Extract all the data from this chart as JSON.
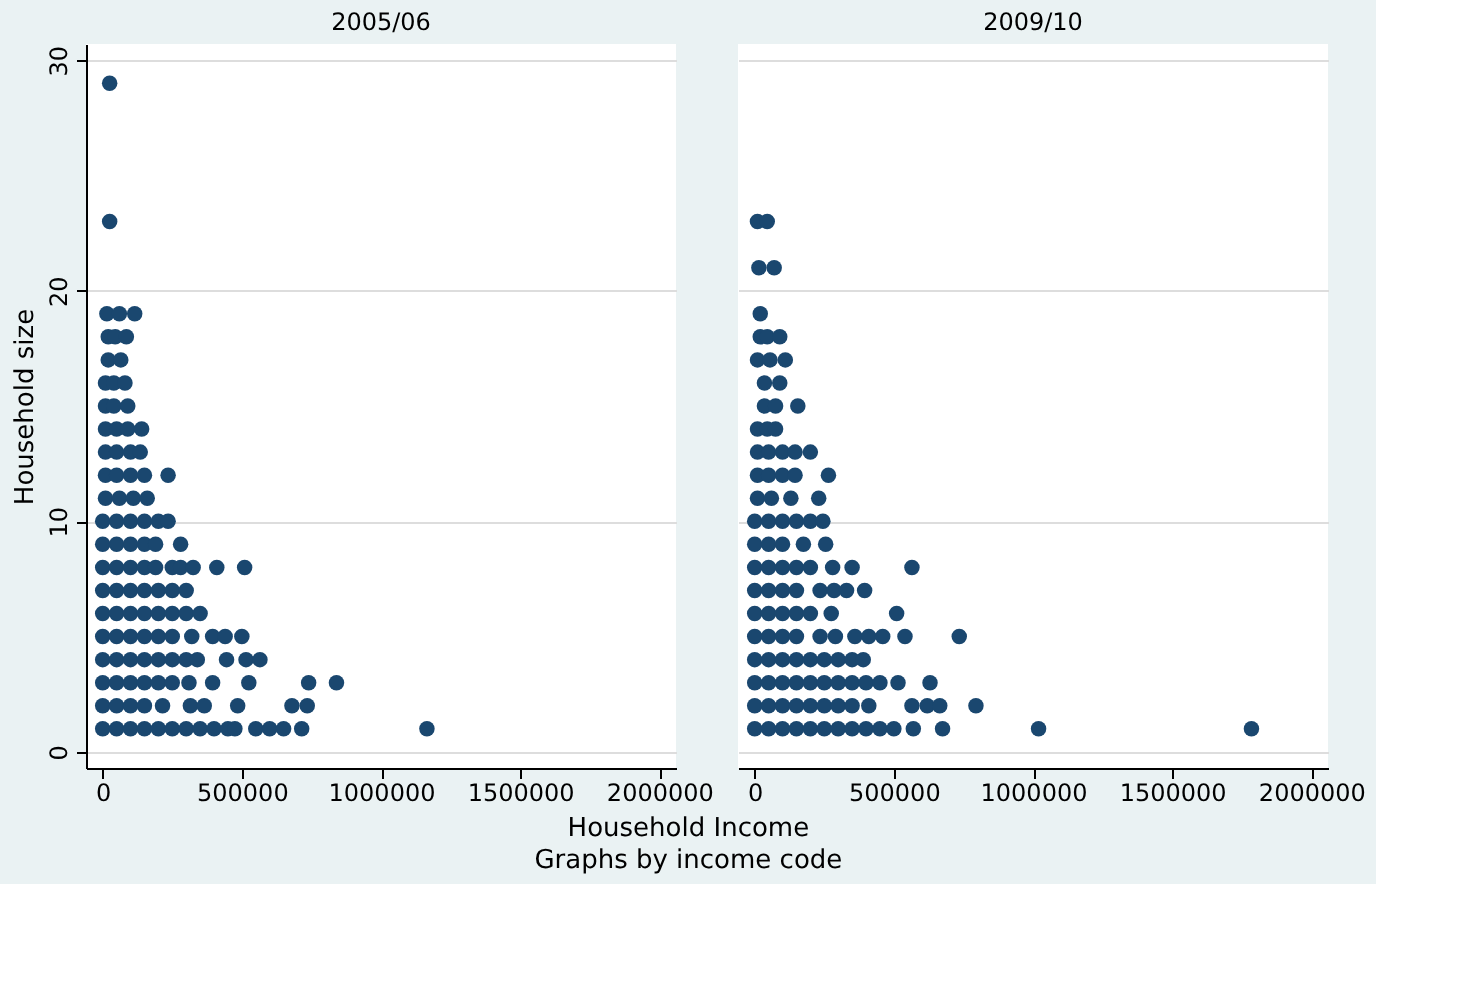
{
  "chart_data": [
    {
      "type": "scatter",
      "title": "2005/06",
      "ylabel": "Household size",
      "xlabel": "Household Income",
      "annotations": [
        "Graphs by income code"
      ],
      "xlim": [
        -60000,
        2060000
      ],
      "ylim": [
        -0.7,
        30.7
      ],
      "xticks": [
        0,
        500000,
        1000000,
        1500000,
        2000000
      ],
      "yticks": [
        0,
        10,
        20,
        30
      ],
      "grid": "y",
      "marker": "circle",
      "series": [
        {
          "color": "#1a476f",
          "x": [
            25000
          ],
          "values": [
            29
          ]
        },
        {
          "color": "#1a476f",
          "x": [
            25000
          ],
          "values": [
            23
          ]
        },
        {
          "color": "#1a476f",
          "x": [
            15000,
            60000,
            115000
          ],
          "values": [
            19,
            19,
            19
          ]
        },
        {
          "color": "#1a476f",
          "x": [
            20000,
            45000,
            85000
          ],
          "values": [
            18,
            18,
            18
          ]
        },
        {
          "color": "#1a476f",
          "x": [
            20000,
            65000
          ],
          "values": [
            17,
            17
          ]
        },
        {
          "color": "#1a476f",
          "x": [
            10000,
            40000,
            80000
          ],
          "values": [
            16,
            16,
            16
          ]
        },
        {
          "color": "#1a476f",
          "x": [
            10000,
            40000,
            90000
          ],
          "values": [
            15,
            15,
            15
          ]
        },
        {
          "color": "#1a476f",
          "x": [
            10000,
            50000,
            90000,
            140000
          ],
          "values": [
            14,
            14,
            14,
            14
          ]
        },
        {
          "color": "#1a476f",
          "x": [
            10000,
            50000,
            100000,
            135000
          ],
          "values": [
            13,
            13,
            13,
            13
          ]
        },
        {
          "color": "#1a476f",
          "x": [
            10000,
            50000,
            100000,
            150000,
            235000
          ],
          "values": [
            12,
            12,
            12,
            12,
            12
          ]
        },
        {
          "color": "#1a476f",
          "x": [
            10000,
            60000,
            110000,
            160000
          ],
          "values": [
            11,
            11,
            11,
            11
          ]
        },
        {
          "color": "#1a476f",
          "x": [
            0,
            50000,
            100000,
            150000,
            200000,
            235000
          ],
          "values": [
            10,
            10,
            10,
            10,
            10,
            10
          ]
        },
        {
          "color": "#1a476f",
          "x": [
            0,
            50000,
            100000,
            150000,
            190000,
            280000
          ],
          "values": [
            9,
            9,
            9,
            9,
            9,
            9
          ]
        },
        {
          "color": "#1a476f",
          "x": [
            0,
            50000,
            100000,
            150000,
            190000,
            250000,
            280000,
            325000,
            410000,
            510000
          ],
          "values": [
            8,
            8,
            8,
            8,
            8,
            8,
            8,
            8,
            8,
            8
          ]
        },
        {
          "color": "#1a476f",
          "x": [
            0,
            50000,
            100000,
            150000,
            200000,
            250000,
            300000
          ],
          "values": [
            7,
            7,
            7,
            7,
            7,
            7,
            7
          ]
        },
        {
          "color": "#1a476f",
          "x": [
            0,
            50000,
            100000,
            150000,
            200000,
            250000,
            300000,
            350000
          ],
          "values": [
            6,
            6,
            6,
            6,
            6,
            6,
            6,
            6
          ]
        },
        {
          "color": "#1a476f",
          "x": [
            0,
            50000,
            100000,
            150000,
            200000,
            250000,
            320000,
            395000,
            440000,
            500000
          ],
          "values": [
            5,
            5,
            5,
            5,
            5,
            5,
            5,
            5,
            5,
            5
          ]
        },
        {
          "color": "#1a476f",
          "x": [
            0,
            50000,
            100000,
            150000,
            200000,
            250000,
            300000,
            340000,
            445000,
            515000,
            565000
          ],
          "values": [
            4,
            4,
            4,
            4,
            4,
            4,
            4,
            4,
            4,
            4,
            4
          ]
        },
        {
          "color": "#1a476f",
          "x": [
            0,
            50000,
            100000,
            150000,
            200000,
            250000,
            310000,
            395000,
            525000,
            740000,
            840000
          ],
          "values": [
            3,
            3,
            3,
            3,
            3,
            3,
            3,
            3,
            3,
            3,
            3
          ]
        },
        {
          "color": "#1a476f",
          "x": [
            0,
            50000,
            100000,
            150000,
            215000,
            315000,
            365000,
            485000,
            680000,
            735000
          ],
          "values": [
            2,
            2,
            2,
            2,
            2,
            2,
            2,
            2,
            2,
            2
          ]
        },
        {
          "color": "#1a476f",
          "x": [
            0,
            50000,
            100000,
            150000,
            200000,
            250000,
            300000,
            350000,
            400000,
            450000,
            475000,
            550000,
            600000,
            650000,
            715000,
            1165000
          ],
          "values": [
            1,
            1,
            1,
            1,
            1,
            1,
            1,
            1,
            1,
            1,
            1,
            1,
            1,
            1,
            1,
            1
          ]
        }
      ]
    },
    {
      "type": "scatter",
      "title": "2009/10",
      "tick_labels": "x",
      "xlim": [
        -60000,
        2060000
      ],
      "ylim": [
        -0.7,
        30.7
      ],
      "xticks": [
        0,
        500000,
        1000000,
        1500000,
        2000000
      ],
      "yticks": [
        0,
        10,
        20,
        30
      ],
      "grid": "y",
      "marker": "circle",
      "series": [
        {
          "color": "#1a476f",
          "x": [
            10000,
            45000
          ],
          "values": [
            23,
            23
          ]
        },
        {
          "color": "#1a476f",
          "x": [
            15000,
            70000
          ],
          "values": [
            21,
            21
          ]
        },
        {
          "color": "#1a476f",
          "x": [
            20000
          ],
          "values": [
            19
          ]
        },
        {
          "color": "#1a476f",
          "x": [
            20000,
            45000,
            90000
          ],
          "values": [
            18,
            18,
            18
          ]
        },
        {
          "color": "#1a476f",
          "x": [
            10000,
            55000,
            110000
          ],
          "values": [
            17,
            17,
            17
          ]
        },
        {
          "color": "#1a476f",
          "x": [
            35000,
            90000
          ],
          "values": [
            16,
            16
          ]
        },
        {
          "color": "#1a476f",
          "x": [
            35000,
            75000,
            155000
          ],
          "values": [
            15,
            15,
            15
          ]
        },
        {
          "color": "#1a476f",
          "x": [
            10000,
            45000,
            75000
          ],
          "values": [
            14,
            14,
            14
          ]
        },
        {
          "color": "#1a476f",
          "x": [
            10000,
            50000,
            100000,
            145000,
            200000
          ],
          "values": [
            13,
            13,
            13,
            13,
            13
          ]
        },
        {
          "color": "#1a476f",
          "x": [
            10000,
            50000,
            100000,
            145000,
            265000
          ],
          "values": [
            12,
            12,
            12,
            12,
            12
          ]
        },
        {
          "color": "#1a476f",
          "x": [
            10000,
            60000,
            130000,
            230000
          ],
          "values": [
            11,
            11,
            11,
            11
          ]
        },
        {
          "color": "#1a476f",
          "x": [
            0,
            50000,
            100000,
            150000,
            200000,
            245000
          ],
          "values": [
            10,
            10,
            10,
            10,
            10,
            10
          ]
        },
        {
          "color": "#1a476f",
          "x": [
            0,
            50000,
            100000,
            175000,
            255000
          ],
          "values": [
            9,
            9,
            9,
            9,
            9
          ]
        },
        {
          "color": "#1a476f",
          "x": [
            0,
            50000,
            100000,
            150000,
            200000,
            280000,
            350000,
            565000
          ],
          "values": [
            8,
            8,
            8,
            8,
            8,
            8,
            8,
            8
          ]
        },
        {
          "color": "#1a476f",
          "x": [
            0,
            50000,
            100000,
            150000,
            235000,
            285000,
            330000,
            395000
          ],
          "values": [
            7,
            7,
            7,
            7,
            7,
            7,
            7,
            7
          ]
        },
        {
          "color": "#1a476f",
          "x": [
            0,
            50000,
            100000,
            150000,
            200000,
            275000,
            510000
          ],
          "values": [
            6,
            6,
            6,
            6,
            6,
            6,
            6
          ]
        },
        {
          "color": "#1a476f",
          "x": [
            0,
            50000,
            100000,
            150000,
            235000,
            290000,
            360000,
            410000,
            460000,
            540000,
            735000
          ],
          "values": [
            5,
            5,
            5,
            5,
            5,
            5,
            5,
            5,
            5,
            5,
            5
          ]
        },
        {
          "color": "#1a476f",
          "x": [
            0,
            50000,
            100000,
            150000,
            200000,
            250000,
            300000,
            350000,
            390000
          ],
          "values": [
            4,
            4,
            4,
            4,
            4,
            4,
            4,
            4,
            4
          ]
        },
        {
          "color": "#1a476f",
          "x": [
            0,
            50000,
            100000,
            150000,
            200000,
            250000,
            300000,
            350000,
            400000,
            450000,
            515000,
            630000
          ],
          "values": [
            3,
            3,
            3,
            3,
            3,
            3,
            3,
            3,
            3,
            3,
            3,
            3
          ]
        },
        {
          "color": "#1a476f",
          "x": [
            0,
            50000,
            100000,
            150000,
            200000,
            250000,
            300000,
            350000,
            410000,
            565000,
            620000,
            665000,
            795000
          ],
          "values": [
            2,
            2,
            2,
            2,
            2,
            2,
            2,
            2,
            2,
            2,
            2,
            2,
            2
          ]
        },
        {
          "color": "#1a476f",
          "x": [
            0,
            50000,
            100000,
            150000,
            200000,
            250000,
            300000,
            350000,
            400000,
            450000,
            500000,
            570000,
            675000,
            1020000,
            1785000
          ],
          "values": [
            1,
            1,
            1,
            1,
            1,
            1,
            1,
            1,
            1,
            1,
            1,
            1,
            1,
            1,
            1
          ]
        }
      ]
    }
  ]
}
